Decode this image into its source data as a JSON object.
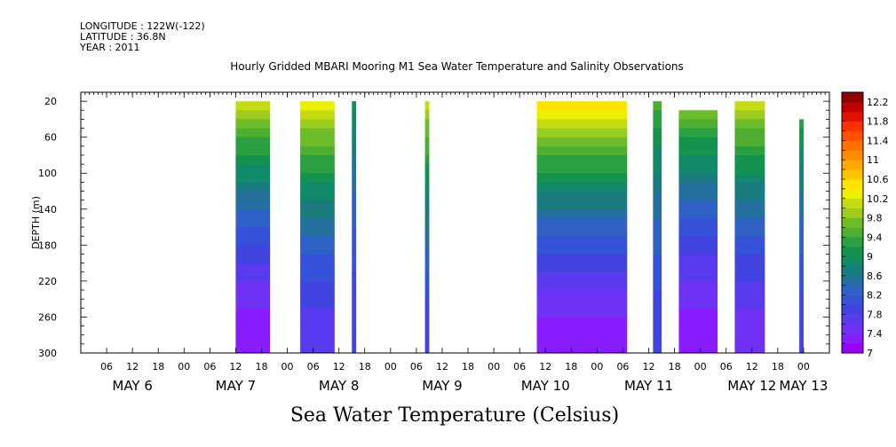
{
  "header": {
    "longitude": "LONGITUDE : 122W(-122)",
    "latitude": "LATITUDE : 36.8N",
    "year": "YEAR : 2011"
  },
  "chart_data": {
    "type": "heatmap",
    "title": "Hourly Gridded MBARI Mooring M1 Sea Water Temperature and Salinity Observations",
    "xlabel": "Sea Water Temperature (Celsius)",
    "ylabel": "DEPTH (m)",
    "xlim_hours": [
      0,
      174
    ],
    "ylim": [
      300,
      10
    ],
    "yticks": [
      20,
      60,
      100,
      140,
      180,
      220,
      260,
      300
    ],
    "hour_tick_labels": [
      "06",
      "12",
      "18",
      "00",
      "06",
      "12",
      "18",
      "00",
      "06",
      "12",
      "18",
      "00",
      "06",
      "12",
      "18",
      "00",
      "06",
      "12",
      "18",
      "00",
      "06",
      "12",
      "18",
      "00",
      "06",
      "12",
      "18",
      "00"
    ],
    "day_labels": [
      "MAY  6",
      "MAY  7",
      "MAY  8",
      "MAY  9",
      "MAY 10",
      "MAY 11",
      "MAY 12",
      "MAY 13"
    ],
    "colorbar": {
      "levels": [
        7,
        7.2,
        7.4,
        7.6,
        7.8,
        8,
        8.2,
        8.4,
        8.6,
        8.8,
        9,
        9.2,
        9.4,
        9.6,
        9.8,
        10,
        10.2,
        10.4,
        10.6,
        10.8,
        11,
        11.2,
        11.4,
        11.6,
        11.8,
        12,
        12.2
      ],
      "labels": [
        "7",
        "7.4",
        "7.8",
        "8.2",
        "8.6",
        "9",
        "9.4",
        "9.8",
        "10.2",
        "10.6",
        "11",
        "11.4",
        "11.8",
        "12.2"
      ],
      "colors": [
        "#9a00ff",
        "#8a1dff",
        "#6f32f5",
        "#5a3aee",
        "#4244e0",
        "#3652d8",
        "#2f62c4",
        "#24709e",
        "#1b7c80",
        "#128a6a",
        "#14924f",
        "#2aa042",
        "#4eae32",
        "#6cbc2a",
        "#9acd1e",
        "#c6dc12",
        "#eaf000",
        "#ffe400",
        "#ffc400",
        "#ffa800",
        "#ff8c00",
        "#ff7000",
        "#ff5000",
        "#ff3000",
        "#e41000",
        "#c00000",
        "#900000"
      ]
    },
    "data_blocks": [
      {
        "start_hour": 36,
        "end_hour": 44,
        "top_depth": 20,
        "surface_temp": 10.0,
        "bottom_temp": 7.2
      },
      {
        "start_hour": 51,
        "end_hour": 59,
        "top_depth": 20,
        "surface_temp": 10.2,
        "bottom_temp": 7.6
      },
      {
        "start_hour": 63,
        "end_hour": 64,
        "top_depth": 20,
        "surface_temp": 9.0,
        "bottom_temp": 7.8
      },
      {
        "start_hour": 80,
        "end_hour": 81,
        "top_depth": 20,
        "surface_temp": 10.0,
        "bottom_temp": 7.8
      },
      {
        "start_hour": 106,
        "end_hour": 127,
        "top_depth": 20,
        "surface_temp": 10.4,
        "bottom_temp": 7.2
      },
      {
        "start_hour": 133,
        "end_hour": 135,
        "top_depth": 20,
        "surface_temp": 9.4,
        "bottom_temp": 7.8
      },
      {
        "start_hour": 139,
        "end_hour": 148,
        "top_depth": 30,
        "surface_temp": 9.6,
        "bottom_temp": 7.2
      },
      {
        "start_hour": 152,
        "end_hour": 159,
        "top_depth": 20,
        "surface_temp": 10.0,
        "bottom_temp": 7.4
      },
      {
        "start_hour": 167,
        "end_hour": 168,
        "top_depth": 40,
        "surface_temp": 9.2,
        "bottom_temp": 7.8
      }
    ]
  }
}
